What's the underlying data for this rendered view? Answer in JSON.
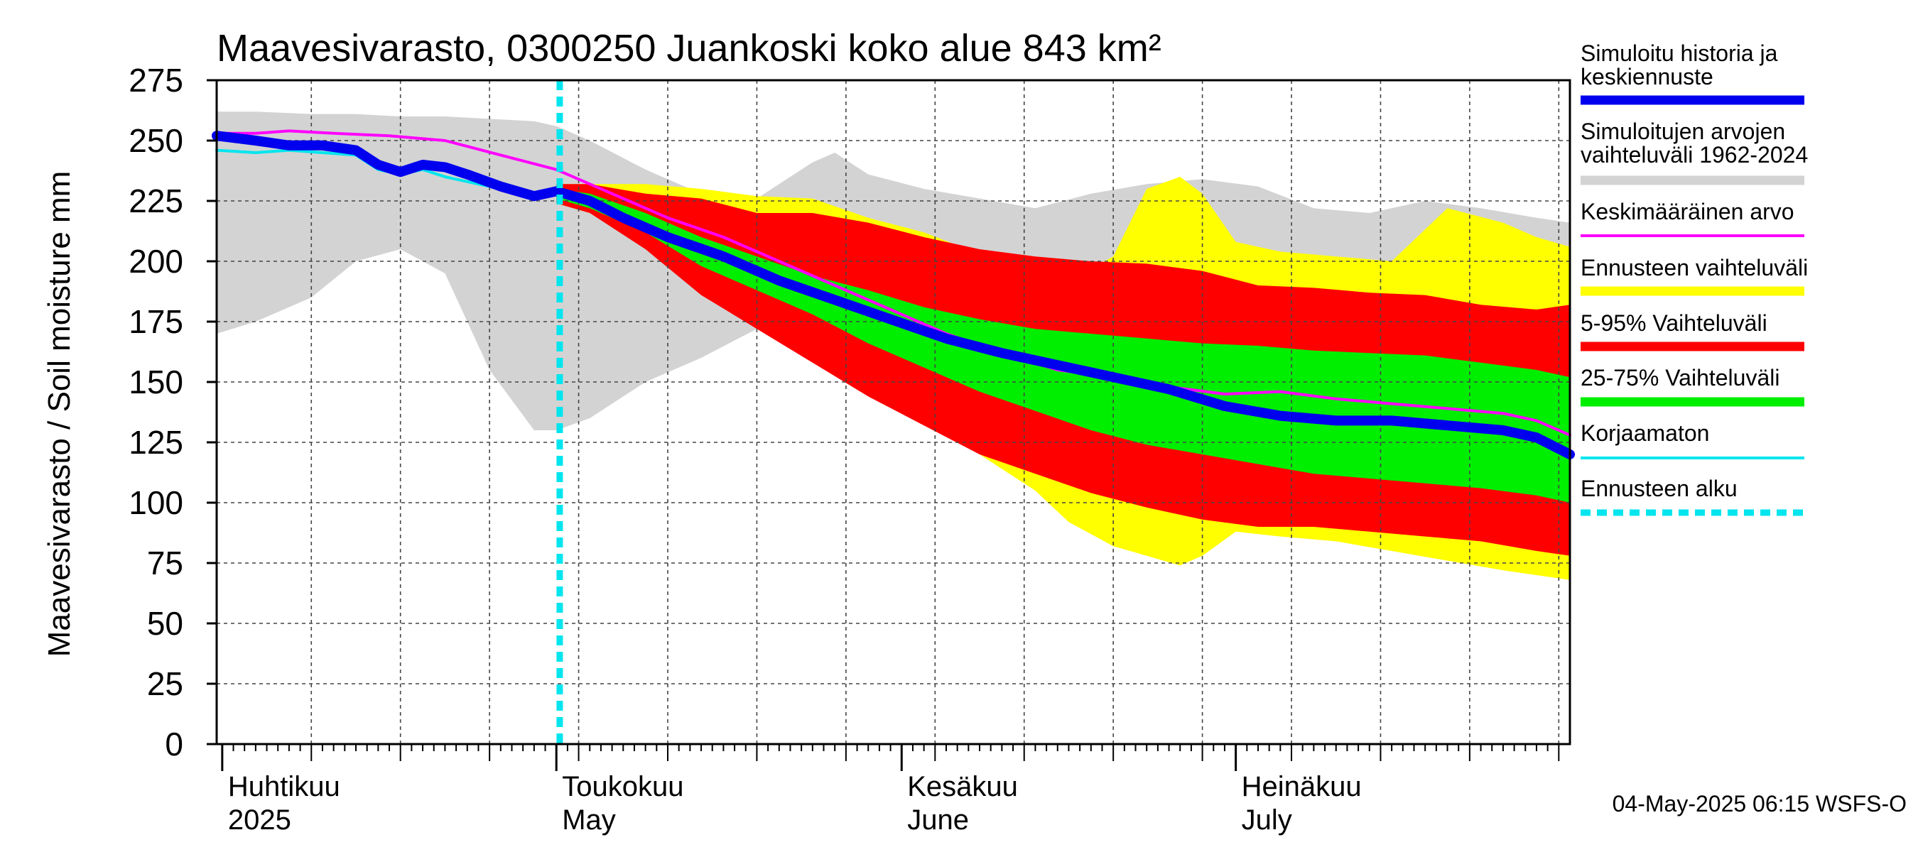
{
  "chart_data": {
    "type": "area",
    "title": "Maavesivarasto, 0300250 Juankoski koko alue 843 km²",
    "ylabel": "Maavesivarasto / Soil moisture   mm",
    "xlabel": "",
    "ylim": [
      0,
      275
    ],
    "yticks": [
      "0",
      "25",
      "50",
      "75",
      "100",
      "125",
      "150",
      "175",
      "200",
      "225",
      "250",
      "275"
    ],
    "xlim_days_from_apr1": [
      -0.5,
      121
    ],
    "month_labels": [
      {
        "fi": "Huhtikuu",
        "en": "2025",
        "day": 0
      },
      {
        "fi": "Toukokuu",
        "en": "May",
        "day": 30
      },
      {
        "fi": "Kesäkuu",
        "en": "June",
        "day": 61
      },
      {
        "fi": "Heinäkuu",
        "en": "July",
        "day": 91
      }
    ],
    "forecast_start_day": 30.3,
    "timestamp": "04-May-2025 06:15 WSFS-O",
    "series": [
      {
        "name": "Simuloitujen arvojen vaihteluväli 1962-2024",
        "kind": "band",
        "color": "#d3d3d3",
        "x": [
          -0.5,
          3,
          8,
          12,
          16,
          20,
          24,
          28,
          30,
          33,
          38,
          43,
          48,
          53,
          55,
          58,
          63,
          68,
          73,
          78,
          83,
          88,
          93,
          98,
          103,
          108,
          113,
          118,
          121
        ],
        "upper": [
          262,
          262,
          261,
          261,
          260,
          260,
          259,
          258,
          256,
          250,
          238,
          228,
          226,
          241,
          245,
          236,
          230,
          226,
          222,
          228,
          232,
          234,
          231,
          222,
          220,
          225,
          222,
          218,
          216
        ],
        "lower": [
          170,
          175,
          185,
          200,
          205,
          195,
          155,
          130,
          130,
          135,
          150,
          160,
          172,
          178,
          180,
          177,
          173,
          168,
          163,
          158,
          150,
          144,
          138,
          132,
          126,
          120,
          112,
          104,
          96
        ]
      },
      {
        "name": "Ennusteen vaihteluväli",
        "kind": "band",
        "color": "#ffff00",
        "x": [
          30,
          33,
          38,
          43,
          48,
          53,
          58,
          63,
          68,
          73,
          76,
          80,
          83,
          86,
          88,
          91,
          95,
          100,
          105,
          110,
          115,
          118,
          121
        ],
        "upper": [
          232,
          232,
          232,
          230,
          227,
          226,
          218,
          212,
          203,
          198,
          192,
          202,
          230,
          235,
          228,
          208,
          204,
          202,
          200,
          222,
          216,
          210,
          206
        ],
        "lower": [
          224,
          220,
          210,
          195,
          180,
          165,
          150,
          135,
          120,
          105,
          92,
          82,
          78,
          74,
          78,
          88,
          86,
          84,
          80,
          76,
          72,
          70,
          68
        ]
      },
      {
        "name": "5-95% Vaihteluväli",
        "kind": "band",
        "color": "#ff0000",
        "x": [
          30,
          33,
          38,
          43,
          48,
          53,
          58,
          63,
          68,
          73,
          78,
          83,
          88,
          93,
          98,
          103,
          108,
          113,
          118,
          121
        ],
        "upper": [
          232,
          232,
          228,
          226,
          220,
          220,
          216,
          210,
          205,
          202,
          200,
          199,
          196,
          190,
          189,
          187,
          186,
          182,
          180,
          182
        ],
        "lower": [
          224,
          220,
          205,
          186,
          172,
          158,
          144,
          132,
          120,
          112,
          104,
          98,
          93,
          90,
          90,
          88,
          86,
          84,
          80,
          78
        ]
      },
      {
        "name": "25-75% Vaihteluväli",
        "kind": "band",
        "color": "#00ee00",
        "x": [
          30,
          33,
          38,
          43,
          48,
          53,
          58,
          63,
          68,
          73,
          78,
          83,
          88,
          93,
          98,
          103,
          108,
          113,
          118,
          121
        ],
        "upper": [
          230,
          228,
          220,
          210,
          202,
          194,
          188,
          181,
          176,
          172,
          170,
          168,
          166,
          165,
          163,
          162,
          161,
          158,
          155,
          152
        ],
        "lower": [
          226,
          222,
          212,
          198,
          188,
          178,
          166,
          156,
          146,
          138,
          130,
          124,
          120,
          116,
          112,
          110,
          108,
          106,
          103,
          100
        ]
      },
      {
        "name": "Keskimääräinen arvo",
        "kind": "line",
        "color": "#ff00ff",
        "x": [
          -0.5,
          3,
          6,
          10,
          15,
          20,
          25,
          30,
          33,
          36,
          40,
          45,
          50,
          55,
          60,
          65,
          70,
          75,
          80,
          85,
          90,
          95,
          100,
          105,
          110,
          115,
          118,
          121
        ],
        "y": [
          253,
          253,
          254,
          253,
          252,
          250,
          244,
          238,
          232,
          226,
          218,
          210,
          200,
          190,
          180,
          170,
          162,
          155,
          152,
          148,
          145,
          146,
          143,
          141,
          139,
          137,
          134,
          128
        ]
      },
      {
        "name": "Korjaamaton",
        "kind": "line",
        "color": "#00e5ee",
        "x": [
          -0.5,
          3,
          6,
          9,
          12,
          14,
          16,
          18,
          20,
          22,
          25,
          28,
          30
        ],
        "y": [
          246,
          245,
          246,
          245,
          244,
          238,
          236,
          238,
          235,
          233,
          230,
          228,
          229
        ]
      },
      {
        "name": "Simuloitu historia ja keskiennuste",
        "kind": "line",
        "color": "#0000ee",
        "x": [
          -0.5,
          3,
          6,
          9,
          12,
          14,
          16,
          18,
          20,
          22,
          25,
          28,
          30,
          33,
          36,
          40,
          45,
          50,
          55,
          60,
          65,
          70,
          75,
          80,
          85,
          90,
          95,
          100,
          105,
          110,
          115,
          118,
          121
        ],
        "y": [
          252,
          250,
          248,
          248,
          246,
          240,
          237,
          240,
          239,
          236,
          231,
          227,
          229,
          225,
          218,
          210,
          202,
          192,
          184,
          176,
          168,
          162,
          157,
          152,
          147,
          140,
          136,
          134,
          134,
          132,
          130,
          127,
          120
        ]
      }
    ],
    "legend": [
      {
        "label": "Simuloitu historia ja keskiennuste",
        "color": "#0000ee",
        "style": "thick"
      },
      {
        "label": "Simuloitujen arvojen vaihteluväli 1962-2024",
        "color": "#d3d3d3",
        "style": "thick"
      },
      {
        "label": "Keskimääräinen arvo",
        "color": "#ff00ff",
        "style": "thin"
      },
      {
        "label": "Ennusteen vaihteluväli",
        "color": "#ffff00",
        "style": "thick"
      },
      {
        "label": "5-95% Vaihteluväli",
        "color": "#ff0000",
        "style": "thick"
      },
      {
        "label": "25-75% Vaihteluväli",
        "color": "#00ee00",
        "style": "thick"
      },
      {
        "label": "Korjaamaton",
        "color": "#00e5ee",
        "style": "thin"
      },
      {
        "label": "Ennusteen alku",
        "color": "#00e5ee",
        "style": "dashed"
      }
    ]
  }
}
